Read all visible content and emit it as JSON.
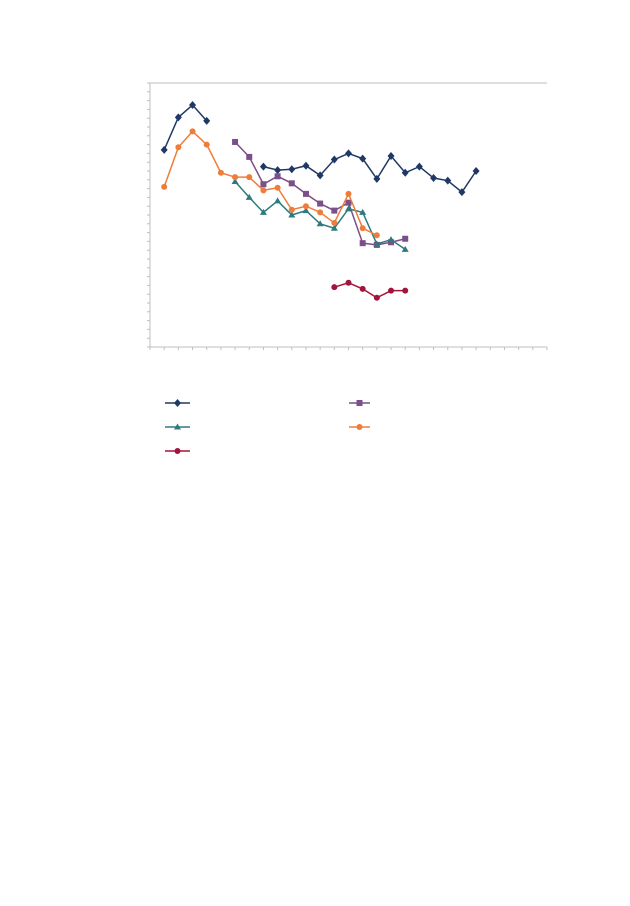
{
  "chart_data": {
    "type": "line",
    "x": [
      1,
      2,
      3,
      4,
      5,
      6,
      7,
      8,
      9,
      10,
      11,
      12,
      13,
      14,
      15,
      16,
      17,
      18,
      19,
      20,
      21,
      22,
      23
    ],
    "xlim": [
      0,
      28
    ],
    "xticks": [
      0,
      1,
      2,
      3,
      4,
      5,
      6,
      7,
      8,
      9,
      10,
      11,
      12,
      13,
      14,
      15,
      16,
      17,
      18,
      19,
      20,
      21,
      22,
      23,
      24,
      25,
      26,
      27,
      28
    ],
    "ylim": [
      0,
      30
    ],
    "yticks": [
      0,
      1,
      2,
      3,
      4,
      5,
      6,
      7,
      8,
      9,
      10,
      11,
      12,
      13,
      14,
      15,
      16,
      17,
      18,
      19,
      20,
      21,
      22,
      23,
      24,
      25,
      26,
      27,
      28,
      29,
      30
    ],
    "legend": "bottom",
    "series": [
      {
        "color": "#1f3864",
        "marker": "diamond",
        "values": [
          22.4,
          26.1,
          27.5,
          25.7,
          null,
          null,
          null,
          20.5,
          20.1,
          20.2,
          20.6,
          19.5,
          21.3,
          22.0,
          21.4,
          19.1,
          21.7,
          19.8,
          20.5,
          19.2,
          18.9,
          17.6,
          20.0
        ]
      },
      {
        "color": "#7b4f8a",
        "marker": "square",
        "values": [
          null,
          null,
          null,
          null,
          null,
          23.3,
          21.6,
          18.5,
          19.4,
          18.6,
          17.4,
          16.3,
          15.5,
          16.4,
          11.8,
          11.6,
          11.9,
          12.3,
          null,
          null,
          null,
          null,
          null
        ]
      },
      {
        "color": "#2e7b7f",
        "marker": "triangle",
        "values": [
          null,
          null,
          null,
          null,
          null,
          18.8,
          17.0,
          15.3,
          16.6,
          15.0,
          15.5,
          14.0,
          13.5,
          15.7,
          15.3,
          11.7,
          12.2,
          11.1,
          null,
          null,
          null,
          null,
          null
        ]
      },
      {
        "color": "#ef7d3a",
        "marker": "circle",
        "values": [
          18.2,
          22.7,
          24.5,
          23.0,
          19.8,
          19.3,
          19.3,
          17.8,
          18.1,
          15.6,
          16.0,
          15.3,
          14.1,
          17.4,
          13.5,
          12.7,
          null,
          null,
          null,
          null,
          null,
          null,
          null
        ]
      },
      {
        "color": "#a3143c",
        "marker": "circle",
        "values": [
          null,
          null,
          null,
          null,
          null,
          null,
          null,
          null,
          null,
          null,
          null,
          null,
          6.8,
          7.3,
          6.6,
          5.6,
          6.4,
          6.4,
          null,
          null,
          null,
          null,
          null
        ]
      }
    ]
  }
}
